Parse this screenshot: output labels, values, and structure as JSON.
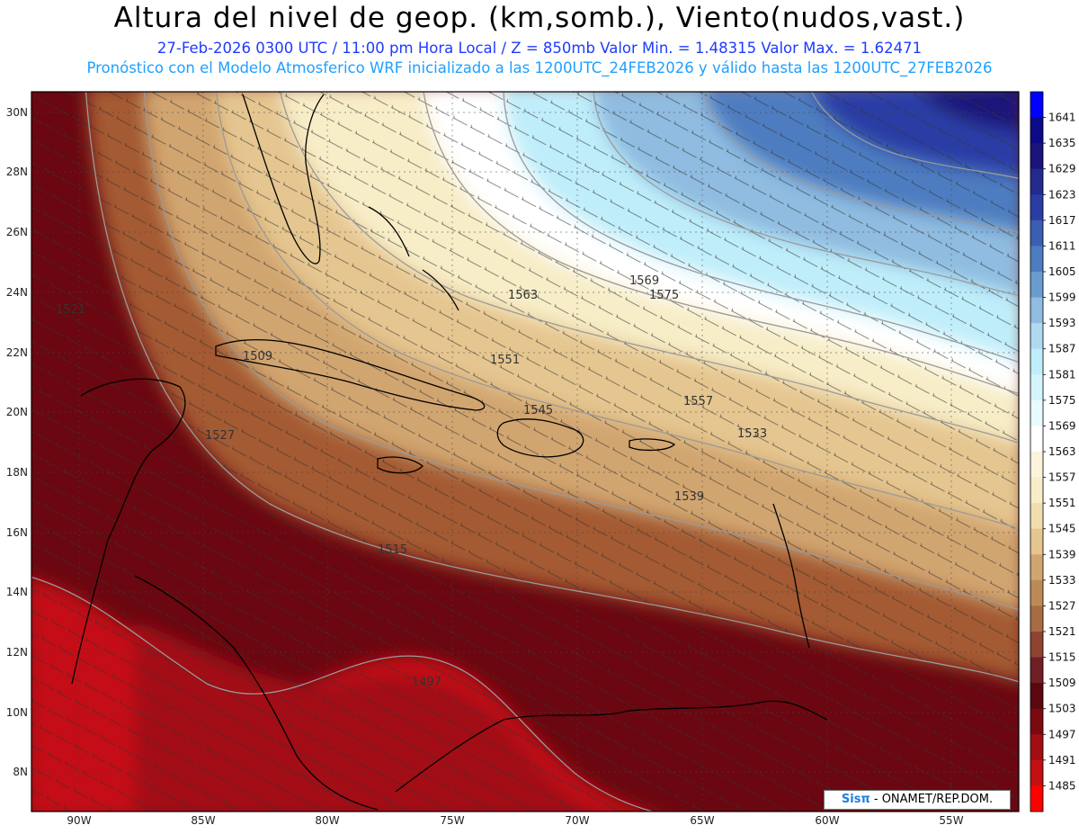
{
  "header": {
    "title": "Altura del nivel de geop. (km,somb.), Viento(nudos,vast.)",
    "subtitle": "27-Feb-2026  0300 UTC / 11:00 pm Hora Local / Z = 850mb    Valor Min. = 1.48315   Valor Max. = 1.62471",
    "subtitle2": "Pronóstico con el Modelo Atmosferico WRF inicializado a las 1200UTC_24FEB2026 y válido hasta las  1200UTC_27FEB2026"
  },
  "map": {
    "lon_labels": [
      "90W",
      "85W",
      "80W",
      "75W",
      "70W",
      "65W",
      "60W",
      "55W"
    ],
    "lat_labels": [
      "30N",
      "28N",
      "26N",
      "24N",
      "22N",
      "20N",
      "18N",
      "16N",
      "14N",
      "12N",
      "10N",
      "8N"
    ],
    "contour_labels": [
      "1569",
      "1575",
      "1563",
      "1551",
      "1545",
      "1539",
      "1533",
      "1527",
      "1521",
      "1515",
      "1509",
      "1497",
      "1557"
    ],
    "colors": {
      "max_blue": "#0000ff",
      "deep_blue": "#2a3da5",
      "light_blue": "#bfeefa",
      "white_band": "#ffffff",
      "cream": "#f7edc7",
      "tan": "#d1a56f",
      "brown": "#a45a33",
      "dark_red": "#6a0710",
      "red": "#c40f12"
    }
  },
  "colorbar": {
    "labels": [
      "1641",
      "1635",
      "1629",
      "1623",
      "1617",
      "1611",
      "1605",
      "1599",
      "1593",
      "1587",
      "1581",
      "1575",
      "1569",
      "1563",
      "1557",
      "1551",
      "1545",
      "1539",
      "1533",
      "1527",
      "1521",
      "1515",
      "1509",
      "1503",
      "1497",
      "1491",
      "1485"
    ],
    "colors": [
      "#0000ff",
      "#0d0a8a",
      "#1a137a",
      "#222a8e",
      "#2a3da5",
      "#3b5eb3",
      "#4d7dc0",
      "#6a9ccf",
      "#8fbce0",
      "#afd9ef",
      "#bfeefa",
      "#d4f5fc",
      "#e8fbff",
      "#ffffff",
      "#fbf3dc",
      "#f7edc7",
      "#f0deaf",
      "#e5c690",
      "#d1a56f",
      "#bd8a57",
      "#a86c43",
      "#8e4331",
      "#701f25",
      "#5a0710",
      "#7a0a10",
      "#a20f13",
      "#c40f12",
      "#ff0000"
    ]
  },
  "credit": {
    "logo": "Sisπ",
    "text": "- ONAMET/REP.DOM."
  }
}
